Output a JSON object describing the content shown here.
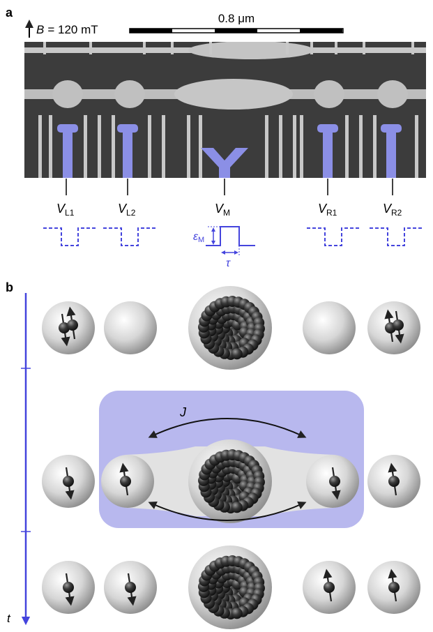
{
  "panel_a": {
    "label": "a",
    "field": {
      "symbol": "B",
      "rest": "= 120 mT"
    },
    "scale_bar": "0.8 μm",
    "gates": [
      {
        "main": "V",
        "sub": "L1"
      },
      {
        "main": "V",
        "sub": "L2"
      },
      {
        "main": "V",
        "sub": "M"
      },
      {
        "main": "V",
        "sub": "R1"
      },
      {
        "main": "V",
        "sub": "R2"
      }
    ],
    "pulse": {
      "amplitude": {
        "main": "ε",
        "sub": "M"
      },
      "duration": "τ"
    }
  },
  "panel_b": {
    "label": "b",
    "coupling": "J",
    "time_axis": "t"
  }
}
